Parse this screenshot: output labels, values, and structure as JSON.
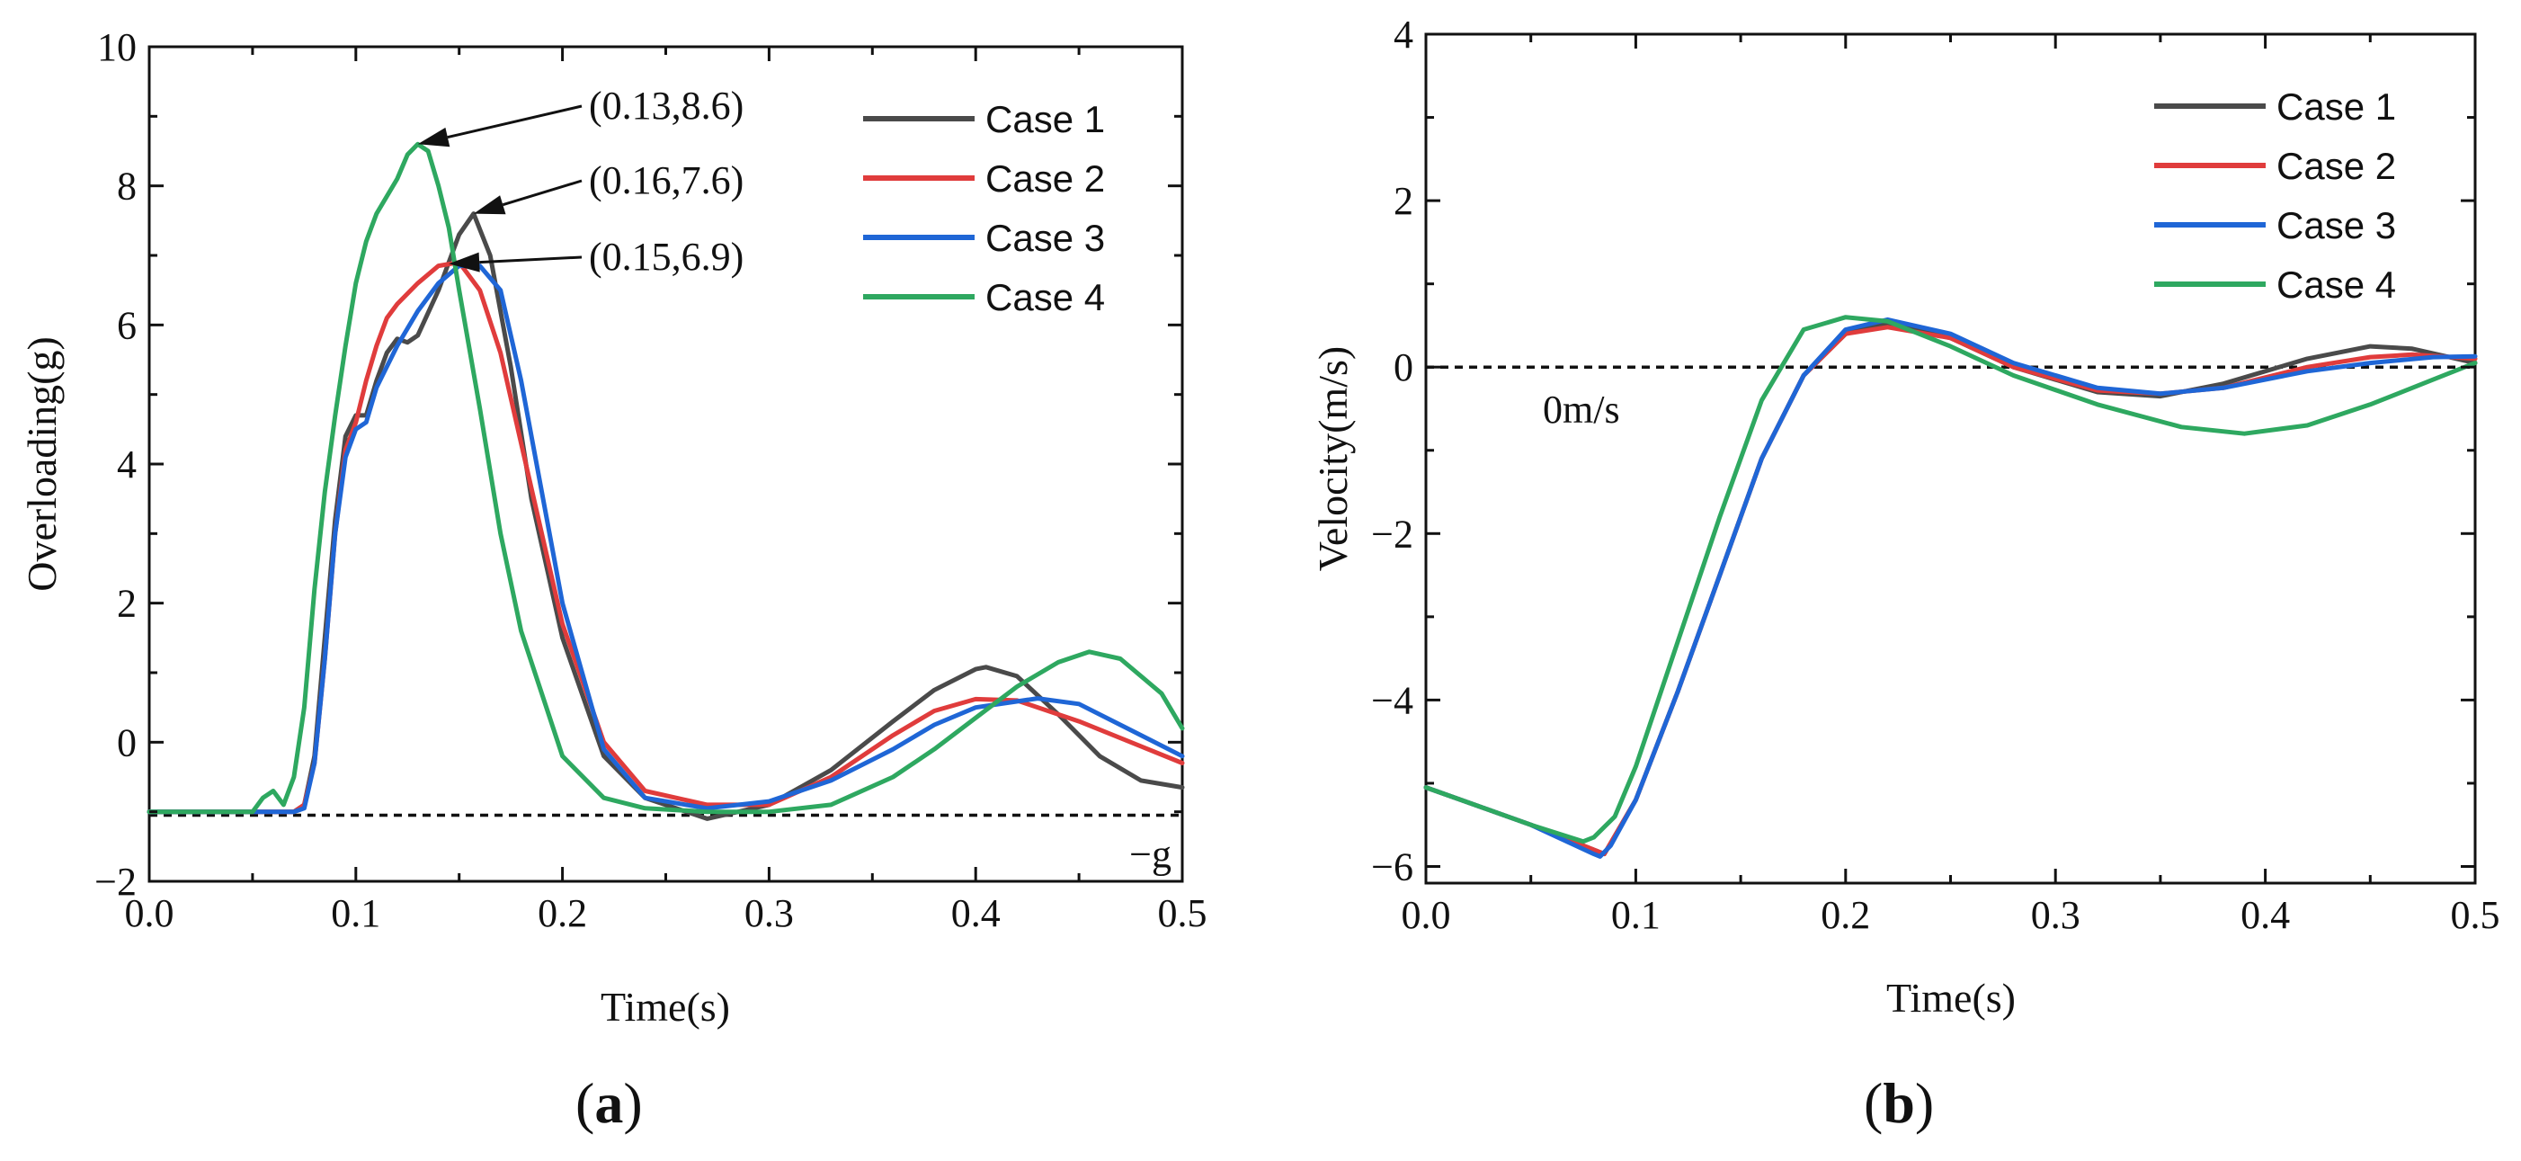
{
  "chart_data": [
    {
      "type": "line",
      "panel_label_open": "(",
      "panel_label_letter": "a",
      "panel_label_close": ")",
      "xlabel": "Time(s)",
      "ylabel": "Overloading(g)",
      "xlim": [
        0,
        0.5
      ],
      "ylim": [
        -2,
        10
      ],
      "xticks": [
        "0.0",
        "0.1",
        "0.2",
        "0.3",
        "0.4",
        "0.5"
      ],
      "yticks": [
        "−2",
        "0",
        "2",
        "4",
        "6",
        "8",
        "10"
      ],
      "reference_line": {
        "y": -1.05,
        "label": "−g"
      },
      "legend_position": "top-right",
      "annotations": [
        {
          "text": "(0.13,8.6)",
          "point": [
            0.13,
            8.6
          ]
        },
        {
          "text": "(0.16,7.6)",
          "point": [
            0.157,
            7.6
          ]
        },
        {
          "text": "(0.15,6.9)",
          "point": [
            0.145,
            6.88
          ]
        }
      ],
      "series": [
        {
          "name": "Case 1",
          "color": "#4a4a4a",
          "x": [
            0,
            0.05,
            0.07,
            0.075,
            0.08,
            0.085,
            0.09,
            0.095,
            0.1,
            0.105,
            0.11,
            0.115,
            0.12,
            0.125,
            0.13,
            0.14,
            0.15,
            0.157,
            0.165,
            0.175,
            0.185,
            0.2,
            0.22,
            0.24,
            0.27,
            0.3,
            0.33,
            0.36,
            0.38,
            0.4,
            0.405,
            0.42,
            0.44,
            0.46,
            0.48,
            0.5
          ],
          "y": [
            -1.0,
            -1.0,
            -1.0,
            -0.9,
            -0.2,
            1.5,
            3.2,
            4.4,
            4.7,
            4.7,
            5.2,
            5.6,
            5.8,
            5.75,
            5.85,
            6.5,
            7.3,
            7.6,
            7.0,
            5.4,
            3.5,
            1.5,
            -0.2,
            -0.8,
            -1.1,
            -0.9,
            -0.4,
            0.3,
            0.75,
            1.05,
            1.08,
            0.95,
            0.4,
            -0.2,
            -0.55,
            -0.65
          ]
        },
        {
          "name": "Case 2",
          "color": "#e03c3c",
          "x": [
            0,
            0.05,
            0.07,
            0.075,
            0.08,
            0.085,
            0.09,
            0.095,
            0.1,
            0.105,
            0.11,
            0.115,
            0.12,
            0.13,
            0.14,
            0.15,
            0.16,
            0.17,
            0.18,
            0.2,
            0.22,
            0.24,
            0.27,
            0.3,
            0.33,
            0.36,
            0.38,
            0.4,
            0.42,
            0.45,
            0.5
          ],
          "y": [
            -1.0,
            -1.0,
            -1.0,
            -0.9,
            -0.3,
            1.2,
            3.0,
            4.2,
            4.6,
            5.2,
            5.7,
            6.1,
            6.3,
            6.6,
            6.85,
            6.9,
            6.5,
            5.6,
            4.3,
            1.7,
            0.0,
            -0.7,
            -0.9,
            -0.9,
            -0.5,
            0.1,
            0.45,
            0.62,
            0.6,
            0.3,
            -0.3
          ]
        },
        {
          "name": "Case 3",
          "color": "#1f66d6",
          "x": [
            0,
            0.05,
            0.07,
            0.075,
            0.08,
            0.085,
            0.09,
            0.095,
            0.1,
            0.105,
            0.11,
            0.115,
            0.12,
            0.13,
            0.14,
            0.15,
            0.16,
            0.17,
            0.18,
            0.2,
            0.22,
            0.24,
            0.27,
            0.3,
            0.33,
            0.36,
            0.38,
            0.4,
            0.43,
            0.45,
            0.47,
            0.5
          ],
          "y": [
            -1.0,
            -1.0,
            -1.0,
            -0.95,
            -0.3,
            1.2,
            3.0,
            4.1,
            4.5,
            4.6,
            5.1,
            5.4,
            5.7,
            6.2,
            6.6,
            6.85,
            6.85,
            6.5,
            5.2,
            2.0,
            -0.1,
            -0.8,
            -0.95,
            -0.85,
            -0.55,
            -0.1,
            0.25,
            0.5,
            0.63,
            0.55,
            0.25,
            -0.2
          ]
        },
        {
          "name": "Case 4",
          "color": "#2ea860",
          "x": [
            0,
            0.05,
            0.055,
            0.06,
            0.065,
            0.07,
            0.075,
            0.08,
            0.085,
            0.09,
            0.095,
            0.1,
            0.105,
            0.11,
            0.12,
            0.125,
            0.13,
            0.135,
            0.14,
            0.145,
            0.15,
            0.16,
            0.17,
            0.18,
            0.2,
            0.22,
            0.24,
            0.27,
            0.3,
            0.33,
            0.36,
            0.38,
            0.4,
            0.42,
            0.44,
            0.455,
            0.47,
            0.49,
            0.5
          ],
          "y": [
            -1.0,
            -1.0,
            -0.8,
            -0.7,
            -0.9,
            -0.5,
            0.5,
            2.2,
            3.6,
            4.7,
            5.7,
            6.6,
            7.2,
            7.6,
            8.1,
            8.45,
            8.6,
            8.5,
            8.0,
            7.4,
            6.5,
            4.8,
            3.0,
            1.6,
            -0.2,
            -0.8,
            -0.95,
            -1.0,
            -1.0,
            -0.9,
            -0.5,
            -0.1,
            0.35,
            0.8,
            1.15,
            1.3,
            1.2,
            0.7,
            0.2
          ]
        }
      ]
    },
    {
      "type": "line",
      "panel_label_open": "(",
      "panel_label_letter": "b",
      "panel_label_close": ")",
      "xlabel": "Time(s)",
      "ylabel": "Velocity(m/s)",
      "xlim": [
        0,
        0.5
      ],
      "ylim": [
        -6.2,
        4
      ],
      "xticks": [
        "0.0",
        "0.1",
        "0.2",
        "0.3",
        "0.4",
        "0.5"
      ],
      "yticks": [
        "−6",
        "−4",
        "−2",
        "0",
        "2",
        "4"
      ],
      "reference_line": {
        "y": 0,
        "label": "0m/s"
      },
      "legend_position": "top-right",
      "series": [
        {
          "name": "Case 1",
          "color": "#4a4a4a",
          "x": [
            0,
            0.05,
            0.08,
            0.085,
            0.1,
            0.12,
            0.14,
            0.16,
            0.18,
            0.2,
            0.22,
            0.25,
            0.28,
            0.32,
            0.35,
            0.38,
            0.42,
            0.45,
            0.47,
            0.5
          ],
          "y": [
            -5.05,
            -5.5,
            -5.8,
            -5.85,
            -5.2,
            -3.9,
            -2.5,
            -1.1,
            -0.1,
            0.4,
            0.52,
            0.35,
            0.0,
            -0.3,
            -0.35,
            -0.2,
            0.1,
            0.25,
            0.22,
            0.05
          ]
        },
        {
          "name": "Case 2",
          "color": "#e03c3c",
          "x": [
            0,
            0.05,
            0.08,
            0.085,
            0.1,
            0.12,
            0.14,
            0.16,
            0.18,
            0.2,
            0.22,
            0.25,
            0.28,
            0.32,
            0.35,
            0.38,
            0.42,
            0.45,
            0.47,
            0.5
          ],
          "y": [
            -5.05,
            -5.5,
            -5.8,
            -5.85,
            -5.2,
            -3.9,
            -2.5,
            -1.1,
            -0.1,
            0.4,
            0.48,
            0.35,
            0.0,
            -0.28,
            -0.32,
            -0.25,
            0.0,
            0.12,
            0.15,
            0.1
          ]
        },
        {
          "name": "Case 3",
          "color": "#1f66d6",
          "x": [
            0,
            0.05,
            0.08,
            0.083,
            0.088,
            0.1,
            0.12,
            0.14,
            0.16,
            0.18,
            0.2,
            0.22,
            0.25,
            0.28,
            0.32,
            0.35,
            0.38,
            0.42,
            0.45,
            0.48,
            0.5
          ],
          "y": [
            -5.05,
            -5.5,
            -5.85,
            -5.88,
            -5.75,
            -5.2,
            -3.9,
            -2.5,
            -1.1,
            -0.1,
            0.45,
            0.57,
            0.4,
            0.05,
            -0.25,
            -0.32,
            -0.25,
            -0.05,
            0.05,
            0.12,
            0.13
          ]
        },
        {
          "name": "Case 4",
          "color": "#2ea860",
          "x": [
            0,
            0.05,
            0.075,
            0.08,
            0.09,
            0.1,
            0.12,
            0.14,
            0.16,
            0.18,
            0.2,
            0.22,
            0.25,
            0.28,
            0.32,
            0.36,
            0.39,
            0.42,
            0.45,
            0.48,
            0.5
          ],
          "y": [
            -5.05,
            -5.5,
            -5.7,
            -5.65,
            -5.4,
            -4.8,
            -3.3,
            -1.8,
            -0.4,
            0.45,
            0.6,
            0.55,
            0.25,
            -0.1,
            -0.45,
            -0.72,
            -0.8,
            -0.7,
            -0.45,
            -0.15,
            0.05
          ]
        }
      ]
    }
  ]
}
